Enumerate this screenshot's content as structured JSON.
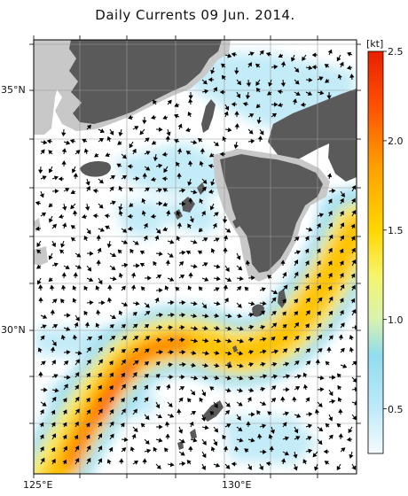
{
  "title": "Daily Currents 09 Jun. 2014.",
  "map": {
    "lat_labels": [
      {
        "value": 35,
        "text": "35°N"
      },
      {
        "value": 30,
        "text": "30°N"
      }
    ],
    "lon_labels": [
      {
        "value": 125,
        "text": "125°E"
      },
      {
        "value": 130,
        "text": "130°E"
      }
    ],
    "colors": {
      "land": "#5a5a5a",
      "land_light": "#c8c8c8",
      "arrow": "#000000",
      "grid": "#9a9a9a"
    }
  },
  "colorbar": {
    "unit": "[kt]",
    "min": 0.25,
    "max": 2.5,
    "ticks": [
      {
        "value": 2.5,
        "text": "2.5"
      },
      {
        "value": 2.0,
        "text": "2.0"
      },
      {
        "value": 1.5,
        "text": "1.5"
      },
      {
        "value": 1.0,
        "text": "1.0"
      },
      {
        "value": 0.5,
        "text": "0.5"
      }
    ],
    "stops": [
      {
        "value": 0.25,
        "color": "#f4fbfe"
      },
      {
        "value": 0.5,
        "color": "#bfeafa"
      },
      {
        "value": 0.8,
        "color": "#90dcee"
      },
      {
        "value": 1.0,
        "color": "#d8f2b0"
      },
      {
        "value": 1.25,
        "color": "#f6f46a"
      },
      {
        "value": 1.5,
        "color": "#ffd700"
      },
      {
        "value": 1.85,
        "color": "#ffa000"
      },
      {
        "value": 2.2,
        "color": "#ff5000"
      },
      {
        "value": 2.5,
        "color": "#e82000"
      }
    ]
  }
}
